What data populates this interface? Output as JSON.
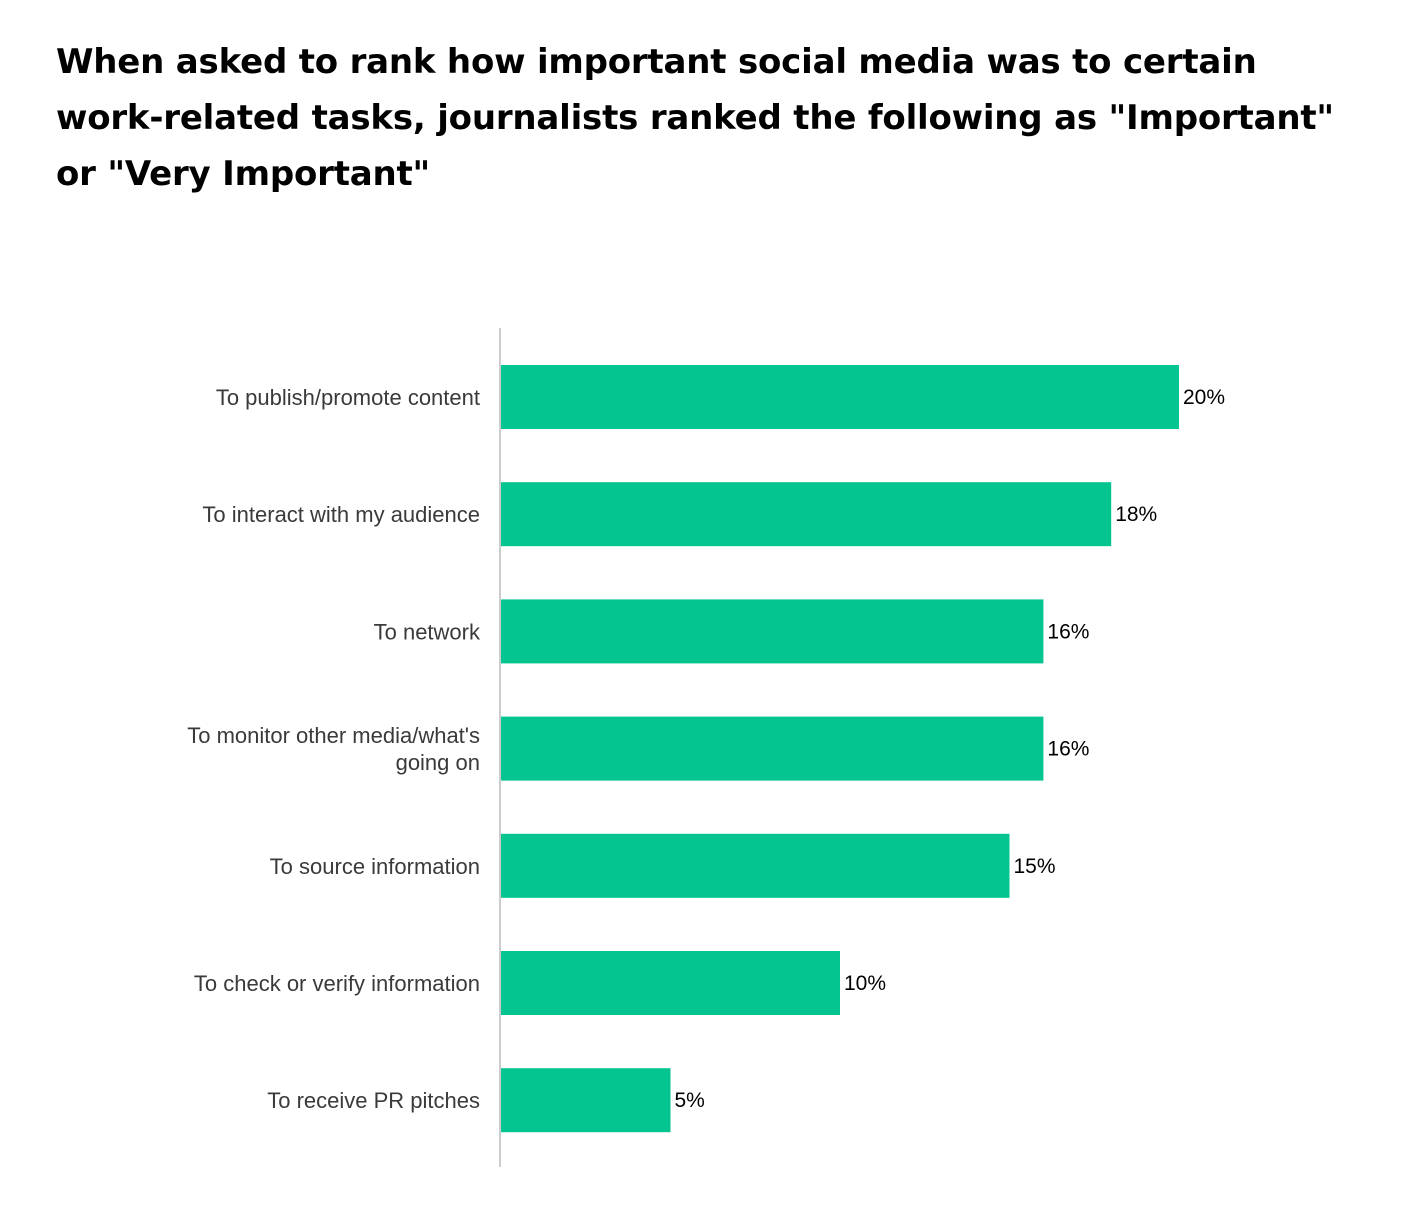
{
  "chart_data": {
    "type": "bar",
    "orientation": "horizontal",
    "title": "When asked to rank how important social media was to certain work-related tasks, journalists ranked the following as \"Important\" or \"Very Important\"",
    "xlabel": "",
    "ylabel": "",
    "categories": [
      [
        "To publish/promote content"
      ],
      [
        "To interact with my audience"
      ],
      [
        "To network"
      ],
      [
        "To monitor other media/what's",
        "going on"
      ],
      [
        "To source information"
      ],
      [
        "To check or verify information"
      ],
      [
        "To receive PR pitches"
      ]
    ],
    "values": [
      20,
      18,
      16,
      16,
      15,
      10,
      5
    ],
    "value_labels": [
      "20%",
      "18%",
      "16%",
      "16%",
      "15%",
      "10%",
      "5%"
    ],
    "xlim": [
      0,
      20
    ],
    "grid": false,
    "legend": "none",
    "bar_color": "#04c58f",
    "axis_color": "#cccccc"
  }
}
